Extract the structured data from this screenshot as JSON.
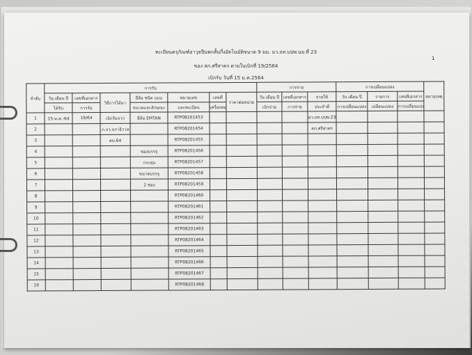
{
  "header": {
    "title": "ทะเบียนครุภัณฑ์อาวุธปืนพกสั้นกึ่งอัตโนมัติขนาด 9 มม. มว.ถท.บปพ.นย.ที่ 23",
    "subtitle": "ของ สภ.ศรีสาคร ตามใบเบิกที่ 19/2564",
    "date_line": "เบิกรับ วันที่ 15 ม.ค.2564",
    "page_number": "1"
  },
  "table": {
    "col_no": "ลำดับ",
    "group_receive": "การรับ",
    "group_pay": "การจ่าย",
    "group_change": "การเปลี่ยนแปลง",
    "remark": "หมายเหตุ",
    "receive_cols": [
      [
        "วัน เดือน ปี",
        "ได้รับ"
      ],
      [
        "เลขที่เอกสาร",
        "การรับ"
      ],
      [
        "วิธีการได้มา",
        ""
      ],
      [
        "ยี่ห้อ ชนิด แบบ",
        "ขนาดและลักษณะ"
      ],
      [
        "หมายเลข",
        "และทะเบียน"
      ],
      [
        "เลขที่",
        "เครื่องหมาย"
      ],
      [
        "ราคาต่อหน่วย",
        ""
      ]
    ],
    "pay_cols": [
      [
        "วัน เดือน ปี",
        "เบิกจ่าย"
      ],
      [
        "เลขที่เอกสาร",
        "การจ่าย"
      ],
      [
        "จ่ายให้",
        "ประจำที่"
      ]
    ],
    "change_cols": [
      [
        "วัน เดือน ปี",
        "การเปลี่ยนแปลง"
      ],
      [
        "รายการ",
        "เปลี่ยนแปลง"
      ],
      [
        "เลขที่เอกสาร",
        "การเปลี่ยนแปลง"
      ]
    ],
    "rows": [
      [
        "1",
        "15-ม.ค.-64",
        "19/64",
        "เบิกรับจาก",
        "ยี่ห้อ EMTAN",
        "RTP08201453",
        "",
        "",
        "",
        "",
        "มว.ถท.บปพ.23",
        "",
        "",
        "",
        ""
      ],
      [
        "2",
        "",
        "",
        "ภ.จว.นราธิวาส",
        "",
        "RTP08201454",
        "",
        "",
        "",
        "",
        "สภ.ศรีสาคร",
        "",
        "",
        "",
        ""
      ],
      [
        "3",
        "",
        "",
        "ตบ.64",
        "",
        "RTP08201455",
        "",
        "",
        "",
        "",
        "",
        "",
        "",
        "",
        ""
      ],
      [
        "4",
        "",
        "",
        "",
        "ซองบรรจุ",
        "RTP08201456",
        "",
        "",
        "",
        "",
        "",
        "",
        "",
        "",
        ""
      ],
      [
        "5",
        "",
        "",
        "",
        "กระสุน",
        "RTP08201457",
        "",
        "",
        "",
        "",
        "",
        "",
        "",
        "",
        ""
      ],
      [
        "6",
        "",
        "",
        "",
        "ขนาดบรรจุ",
        "RTP08201458",
        "",
        "",
        "",
        "",
        "",
        "",
        "",
        "",
        ""
      ],
      [
        "7",
        "",
        "",
        "",
        "2 ซอง",
        "RTP08201459",
        "",
        "",
        "",
        "",
        "",
        "",
        "",
        "",
        ""
      ],
      [
        "8",
        "",
        "",
        "",
        "",
        "RTP08201460",
        "",
        "",
        "",
        "",
        "",
        "",
        "",
        "",
        ""
      ],
      [
        "9",
        "",
        "",
        "",
        "",
        "RTP08201461",
        "",
        "",
        "",
        "",
        "",
        "",
        "",
        "",
        ""
      ],
      [
        "10",
        "",
        "",
        "",
        "",
        "RTP08201462",
        "",
        "",
        "",
        "",
        "",
        "",
        "",
        "",
        ""
      ],
      [
        "11",
        "",
        "",
        "",
        "",
        "RTP08201463",
        "",
        "",
        "",
        "",
        "",
        "",
        "",
        "",
        ""
      ],
      [
        "12",
        "",
        "",
        "",
        "",
        "RTP08201464",
        "",
        "",
        "",
        "",
        "",
        "",
        "",
        "",
        ""
      ],
      [
        "13",
        "",
        "",
        "",
        "",
        "RTP08201465",
        "",
        "",
        "",
        "",
        "",
        "",
        "",
        "",
        ""
      ],
      [
        "14",
        "",
        "",
        "",
        "",
        "RTP08201466",
        "",
        "",
        "",
        "",
        "",
        "",
        "",
        "",
        ""
      ],
      [
        "15",
        "",
        "",
        "",
        "",
        "RTP08201467",
        "",
        "",
        "",
        "",
        "",
        "",
        "",
        "",
        ""
      ],
      [
        "16",
        "",
        "",
        "",
        "",
        "RTP08201468",
        "",
        "",
        "",
        "",
        "",
        "",
        "",
        "",
        ""
      ]
    ]
  }
}
